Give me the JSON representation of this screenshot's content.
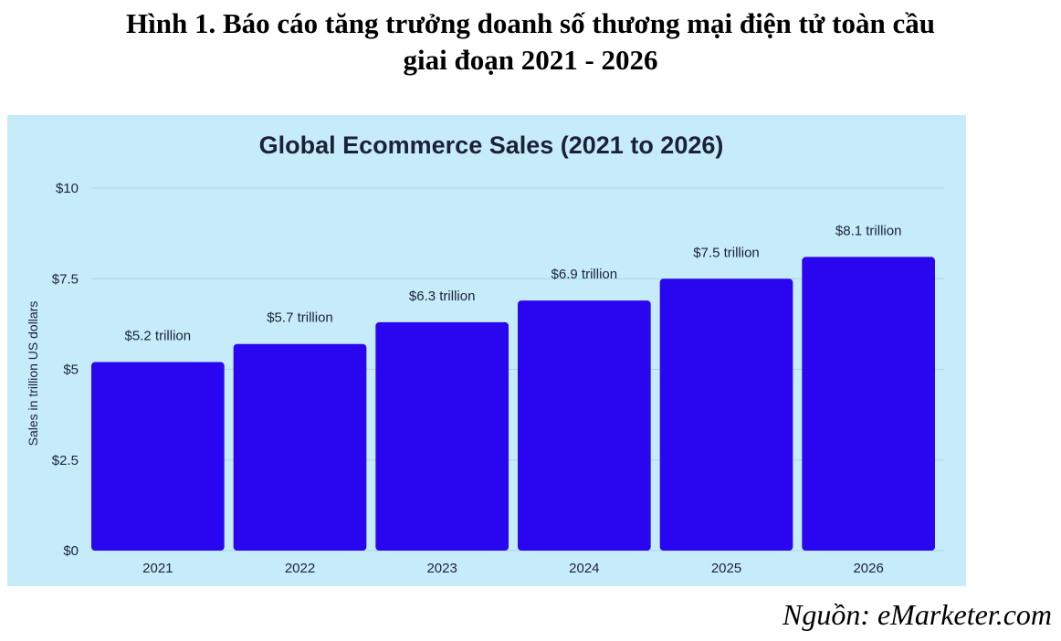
{
  "figure": {
    "title_line1": "Hình 1. Báo cáo tăng trưởng doanh số thương mại điện tử toàn cầu",
    "title_line2": "giai đoạn 2021 - 2026",
    "source": "Nguồn: eMarketer.com"
  },
  "colors": {
    "panel_background": "#c6ecfa",
    "bar": "#2a06f0",
    "gridline": "#a9d6e6",
    "text": "#1c2236"
  },
  "chart_data": {
    "type": "bar",
    "title": "Global Ecommerce Sales (2021 to 2026)",
    "xlabel": "",
    "ylabel": "Sales in trillion US dollars",
    "categories": [
      "2021",
      "2022",
      "2023",
      "2024",
      "2025",
      "2026"
    ],
    "values": [
      5.2,
      5.7,
      6.3,
      6.9,
      7.5,
      8.1
    ],
    "data_labels": [
      "$5.2 trillion",
      "$5.7 trillion",
      "$6.3 trillion",
      "$6.9 trillion",
      "$7.5 trillion",
      "$8.1 trillion"
    ],
    "ylim": [
      0,
      10
    ],
    "yticks": [
      0,
      2.5,
      5,
      7.5,
      10
    ],
    "ytick_labels": [
      "$0",
      "$2.5",
      "$5",
      "$7.5",
      "$10"
    ],
    "grid": true,
    "legend": "none"
  }
}
